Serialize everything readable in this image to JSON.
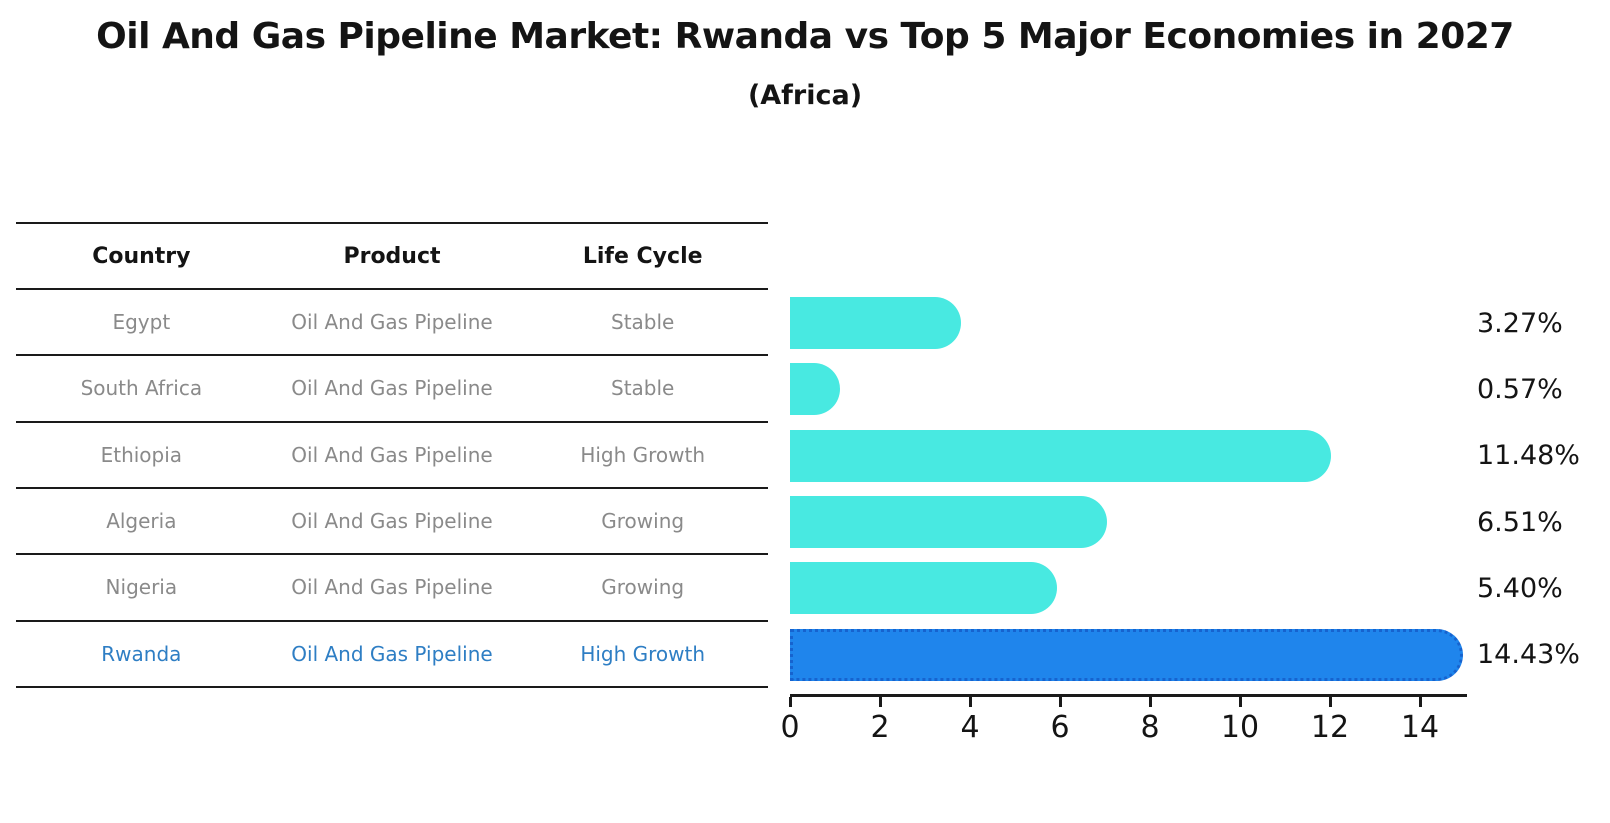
{
  "title": "Oil And Gas Pipeline Market: Rwanda vs Top 5 Major Economies in 2027",
  "subtitle": "(Africa)",
  "table": {
    "headers": [
      "Country",
      "Product",
      "Life Cycle"
    ],
    "rows": [
      {
        "country": "Egypt",
        "product": "Oil And Gas Pipeline",
        "life_cycle": "Stable",
        "highlight": false
      },
      {
        "country": "South Africa",
        "product": "Oil And Gas Pipeline",
        "life_cycle": "Stable",
        "highlight": false
      },
      {
        "country": "Ethiopia",
        "product": "Oil And Gas Pipeline",
        "life_cycle": "High Growth",
        "highlight": false
      },
      {
        "country": "Algeria",
        "product": "Oil And Gas Pipeline",
        "life_cycle": "Growing",
        "highlight": false
      },
      {
        "country": "Nigeria",
        "product": "Oil And Gas Pipeline",
        "life_cycle": "Growing",
        "highlight": false
      },
      {
        "country": "Rwanda",
        "product": "Oil And Gas Pipeline",
        "life_cycle": "High Growth",
        "highlight": true
      }
    ]
  },
  "chart_data": {
    "type": "bar",
    "orientation": "horizontal",
    "title": "Oil And Gas Pipeline Market: Rwanda vs Top 5 Major Economies in 2027",
    "subtitle": "(Africa)",
    "categories": [
      "Egypt",
      "South Africa",
      "Ethiopia",
      "Algeria",
      "Nigeria",
      "Rwanda"
    ],
    "values": [
      3.27,
      0.57,
      11.48,
      6.51,
      5.4,
      14.43
    ],
    "value_labels": [
      "3.27%",
      "0.57%",
      "11.48%",
      "6.51%",
      "5.40%",
      "14.43%"
    ],
    "xlabel": "",
    "ylabel": "",
    "xticks": [
      0,
      2,
      4,
      6,
      8,
      10,
      12,
      14
    ],
    "xlim": [
      0,
      15
    ],
    "grid": false,
    "legend": "none",
    "highlight_index": 5
  },
  "colors": {
    "bar": "#48e9e1",
    "highlight_bar": "#1f85ec",
    "highlight_border": "#1663cf",
    "highlight_text": "#2e7ec4",
    "text_muted": "#8a8a8a",
    "text_dark": "#141414",
    "axis": "#1a1a1a"
  }
}
